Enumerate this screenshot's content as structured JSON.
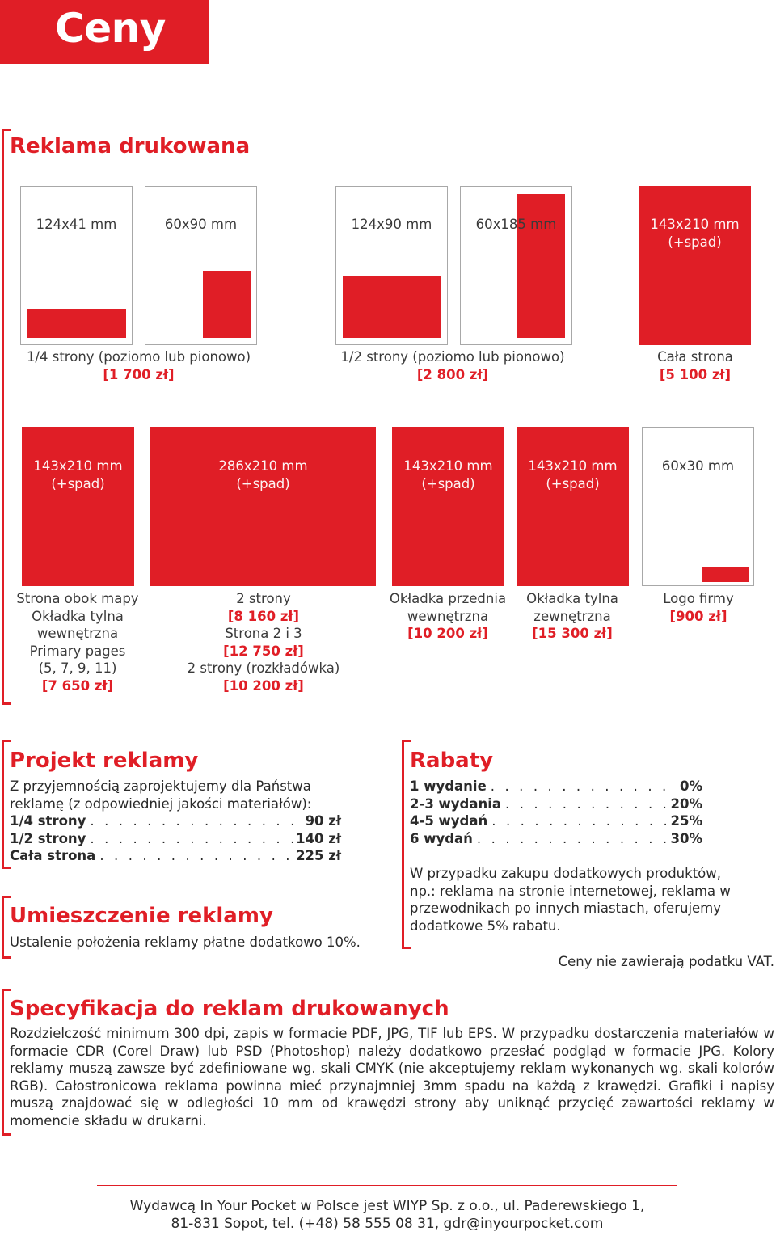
{
  "title": "Ceny",
  "print": {
    "title": "Reklama drukowana",
    "row1": {
      "dims": [
        "124x41 mm",
        "60x90 mm",
        "124x90 mm",
        "60x185 mm",
        "143x210 mm (+spad)"
      ],
      "dim_last_line1": "143x210 mm",
      "dim_last_line2": "(+spad)",
      "captions": [
        {
          "label": "1/4 strony (poziomo lub pionowo)",
          "price": "[1 700 zł]"
        },
        {
          "label": "1/2 strony (poziomo lub pionowo)",
          "price": "[2 800 zł]"
        },
        {
          "label": "Cała strona",
          "price": "[5 100 zł]"
        }
      ]
    },
    "row2": {
      "dims": [
        {
          "l1": "143x210 mm",
          "l2": "(+spad)"
        },
        {
          "l1": "286x210 mm",
          "l2": "(+spad)"
        },
        {
          "l1": "143x210 mm",
          "l2": "(+spad)"
        },
        {
          "l1": "143x210 mm",
          "l2": "(+spad)"
        },
        {
          "l1": "60x30 mm"
        }
      ],
      "captions": [
        {
          "lines": [
            "Strona obok mapy",
            "Okładka tylna",
            "wewnętrzna",
            "Primary pages",
            "(5, 7, 9, 11)"
          ],
          "price": "[7 650 zł]"
        },
        {
          "l1": "2 strony",
          "p1": "[8 160 zł]",
          "l2": "Strona 2 i 3",
          "p2": "[12 750 zł]",
          "l3": "2 strony (rozkładówka)",
          "p3": "[10 200 zł]"
        },
        {
          "lines": [
            "Okładka przednia",
            "wewnętrzna"
          ],
          "price": "[10 200 zł]"
        },
        {
          "lines": [
            "Okładka tylna",
            "zewnętrzna"
          ],
          "price": "[15 300 zł]"
        },
        {
          "lines": [
            "Logo firmy"
          ],
          "price": "[900 zł]"
        }
      ]
    }
  },
  "design": {
    "title": "Projekt reklamy",
    "intro_l1": "Z przyjemnością zaprojektujemy dla Państwa",
    "intro_l2": "reklamę (z odpowiedniej jakości materiałów):",
    "items": [
      {
        "label": "1/4 strony",
        "value": "90 zł"
      },
      {
        "label": "1/2 strony",
        "value": "140 zł"
      },
      {
        "label": "Cała strona",
        "value": "225 zł"
      }
    ]
  },
  "placement": {
    "title": "Umieszczenie reklamy",
    "text": "Ustalenie położenia reklamy płatne dodatkowo 10%."
  },
  "discounts": {
    "title": "Rabaty",
    "items": [
      {
        "label": "1 wydanie",
        "value": "0%"
      },
      {
        "label": "2-3 wydania",
        "value": "20%"
      },
      {
        "label": "4-5 wydań",
        "value": "25%"
      },
      {
        "label": "6 wydań",
        "value": "30%"
      }
    ],
    "note_lines": [
      "W przypadku zakupu dodatkowych produktów,",
      "np.: reklama na stronie internetowej, reklama w",
      "przewodnikach po innych miastach, oferujemy",
      "dodatkowe 5% rabatu."
    ],
    "vat": "Ceny nie zawierają podatku VAT."
  },
  "spec": {
    "title": "Specyfikacja do reklam drukowanych",
    "text": "Rozdzielczość minimum 300 dpi, zapis w formacie PDF, JPG, TIF lub EPS. W przypadku dostarczenia materiałów w formacie CDR (Corel Draw) lub PSD (Photoshop) należy dodatkowo przesłać podgląd w formacie JPG. Kolory reklamy muszą zawsze być zdefiniowane wg. skali CMYK (nie akceptujemy reklam wykonanych wg. skali kolorów RGB). Całostronicowa reklama powinna mieć przynajmniej 3mm spadu na każdą z krawędzi. Grafiki i napisy muszą znajdować się w odległości 10 mm od krawędzi strony aby uniknąć przycięć zawartości reklamy w momencie składu w drukarni."
  },
  "footer": {
    "line1": "Wydawcą In Your Pocket w Polsce jest WIYP Sp. z o.o., ul. Paderewskiego 1,",
    "line2": "81-831 Sopot, tel. (+48) 58 555 08 31, gdr@inyourpocket.com"
  },
  "colors": {
    "accent": "#e01e26",
    "text": "#2a2a2a",
    "box_border": "#a8a8a8"
  }
}
